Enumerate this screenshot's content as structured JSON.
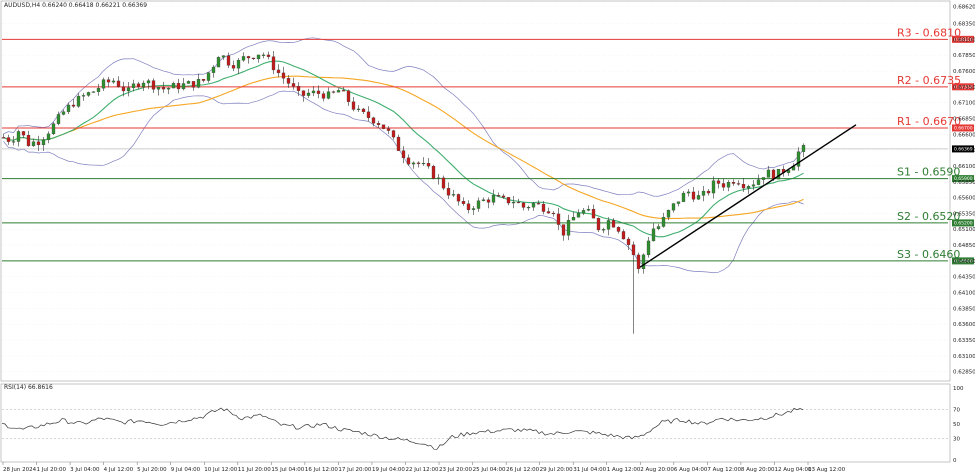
{
  "header": {
    "symbol_text": "AUDUSD,H4  0.66240 0.66418 0.66221 0.66369"
  },
  "current_price_text": "0.66369",
  "colors": {
    "bull": "#2f8f2f",
    "bear": "#c21d1d",
    "support": "#2e7d32",
    "resistance": "#e53935",
    "band": "#7f7fbf",
    "ma_fast": "#3fae6e",
    "ma_slow": "#f5a623",
    "trend": "#000000",
    "rsi": "#333333",
    "grid": "#d9d9d9"
  },
  "chart_data": [
    {
      "type": "candlestick",
      "title": "",
      "ylim": [
        0.6275,
        0.6869
      ],
      "y_ticks": [
        0.6862,
        0.6835,
        0.681,
        0.6785,
        0.676,
        0.6735,
        0.671,
        0.6685,
        0.666,
        0.6635,
        0.661,
        0.6585,
        0.656,
        0.6535,
        0.651,
        0.6485,
        0.646,
        0.6435,
        0.641,
        0.6385,
        0.636,
        0.6335,
        0.631,
        0.6285
      ],
      "x_ticks": [
        "28 Jun 2024",
        "1 Jul 20:00",
        "3 Jul 04:00",
        "4 Jul 12:00",
        "5 Jul 20:00",
        "9 Jul 04:00",
        "10 Jul 12:00",
        "11 Jul 20:00",
        "15 Jul 04:00",
        "16 Jul 12:00",
        "17 Jul 20:00",
        "19 Jul 04:00",
        "22 Jul 12:00",
        "23 Jul 20:00",
        "25 Jul 04:00",
        "26 Jul 12:00",
        "29 Jul 20:00",
        "31 Jul 04:00",
        "1 Aug 12:00",
        "2 Aug 20:00",
        "6 Aug 04:00",
        "7 Aug 12:00",
        "8 Aug 20:00",
        "12 Aug 04:00",
        "13 Aug 12:00"
      ],
      "levels": [
        {
          "name": "R3",
          "value": 0.681,
          "label": "R3 - 0.6810",
          "tag": "0.68100",
          "kind": "resistance"
        },
        {
          "name": "R2",
          "value": 0.6735,
          "label": "R2 - 0.6735",
          "tag": "0.67350",
          "kind": "resistance"
        },
        {
          "name": "R1",
          "value": 0.667,
          "label": "R1 - 0.6670",
          "tag": "0.66700",
          "kind": "resistance"
        },
        {
          "name": "S1",
          "value": 0.659,
          "label": "S1 - 0.6590",
          "tag": "0.65900",
          "kind": "support"
        },
        {
          "name": "S2",
          "value": 0.652,
          "label": "S2 - 0.6520",
          "tag": "0.65200",
          "kind": "support"
        },
        {
          "name": "S3",
          "value": 0.646,
          "label": "S3 - 0.6460",
          "tag": "0.64600",
          "kind": "support"
        }
      ],
      "current_price": 0.66369,
      "trendline": {
        "from": [
          "2 Aug 20:00",
          0.645
        ],
        "to": [
          "13 Aug 12:00 +",
          0.6675
        ]
      },
      "price_path": [
        [
          0,
          0.6655
        ],
        [
          8,
          0.665
        ],
        [
          16,
          0.6668
        ],
        [
          24,
          0.6645
        ],
        [
          36,
          0.665
        ],
        [
          48,
          0.667
        ],
        [
          60,
          0.6695
        ],
        [
          70,
          0.671
        ],
        [
          80,
          0.672
        ],
        [
          90,
          0.6728
        ],
        [
          100,
          0.674
        ],
        [
          110,
          0.6745
        ],
        [
          118,
          0.6735
        ],
        [
          124,
          0.6725
        ],
        [
          132,
          0.674
        ],
        [
          140,
          0.6745
        ],
        [
          150,
          0.6738
        ],
        [
          160,
          0.6732
        ],
        [
          170,
          0.6735
        ],
        [
          180,
          0.6738
        ],
        [
          190,
          0.674
        ],
        [
          200,
          0.6745
        ],
        [
          210,
          0.677
        ],
        [
          216,
          0.679
        ],
        [
          224,
          0.6775
        ],
        [
          232,
          0.677
        ],
        [
          240,
          0.678
        ],
        [
          250,
          0.6785
        ],
        [
          258,
          0.679
        ],
        [
          266,
          0.6775
        ],
        [
          276,
          0.6755
        ],
        [
          286,
          0.674
        ],
        [
          296,
          0.672
        ],
        [
          306,
          0.6725
        ],
        [
          316,
          0.6725
        ],
        [
          326,
          0.672
        ],
        [
          336,
          0.673
        ],
        [
          344,
          0.6715
        ],
        [
          354,
          0.6695
        ],
        [
          364,
          0.6688
        ],
        [
          374,
          0.668
        ],
        [
          384,
          0.6665
        ],
        [
          394,
          0.664
        ],
        [
          404,
          0.662
        ],
        [
          414,
          0.6615
        ],
        [
          424,
          0.6605
        ],
        [
          434,
          0.659
        ],
        [
          444,
          0.657
        ],
        [
          454,
          0.6555
        ],
        [
          462,
          0.654
        ],
        [
          470,
          0.6548
        ],
        [
          480,
          0.6555
        ],
        [
          490,
          0.656
        ],
        [
          500,
          0.6555
        ],
        [
          510,
          0.6555
        ],
        [
          520,
          0.6545
        ],
        [
          530,
          0.655
        ],
        [
          540,
          0.6545
        ],
        [
          550,
          0.654
        ],
        [
          558,
          0.65
        ],
        [
          566,
          0.652
        ],
        [
          576,
          0.654
        ],
        [
          586,
          0.6535
        ],
        [
          596,
          0.651
        ],
        [
          606,
          0.6525
        ],
        [
          616,
          0.651
        ],
        [
          624,
          0.649
        ],
        [
          630,
          0.647
        ],
        [
          634,
          0.644
        ],
        [
          640,
          0.647
        ],
        [
          648,
          0.651
        ],
        [
          656,
          0.6515
        ],
        [
          664,
          0.6535
        ],
        [
          674,
          0.6555
        ],
        [
          684,
          0.657
        ],
        [
          694,
          0.656
        ],
        [
          702,
          0.6565
        ],
        [
          712,
          0.6585
        ],
        [
          722,
          0.658
        ],
        [
          732,
          0.659
        ],
        [
          742,
          0.658
        ],
        [
          752,
          0.6585
        ],
        [
          762,
          0.66
        ],
        [
          772,
          0.6595
        ],
        [
          782,
          0.6605
        ],
        [
          790,
          0.6615
        ],
        [
          796,
          0.6635
        ],
        [
          802,
          0.6637
        ]
      ],
      "rsi": {
        "label": "RSI(14) 66.8616",
        "ylim": [
          0,
          100
        ],
        "y_ticks": [
          100,
          70,
          50,
          30,
          0
        ],
        "levels": [
          70,
          30
        ],
        "path": [
          [
            0,
            50
          ],
          [
            20,
            42
          ],
          [
            40,
            48
          ],
          [
            60,
            55
          ],
          [
            80,
            50
          ],
          [
            100,
            58
          ],
          [
            120,
            52
          ],
          [
            140,
            55
          ],
          [
            160,
            50
          ],
          [
            180,
            55
          ],
          [
            200,
            60
          ],
          [
            220,
            72
          ],
          [
            240,
            58
          ],
          [
            260,
            62
          ],
          [
            280,
            48
          ],
          [
            300,
            45
          ],
          [
            320,
            50
          ],
          [
            340,
            42
          ],
          [
            360,
            38
          ],
          [
            380,
            32
          ],
          [
            400,
            28
          ],
          [
            420,
            24
          ],
          [
            436,
            16
          ],
          [
            450,
            32
          ],
          [
            470,
            38
          ],
          [
            490,
            40
          ],
          [
            510,
            42
          ],
          [
            530,
            40
          ],
          [
            550,
            36
          ],
          [
            570,
            40
          ],
          [
            590,
            38
          ],
          [
            610,
            34
          ],
          [
            630,
            30
          ],
          [
            640,
            34
          ],
          [
            660,
            52
          ],
          [
            680,
            56
          ],
          [
            700,
            50
          ],
          [
            720,
            58
          ],
          [
            740,
            55
          ],
          [
            760,
            58
          ],
          [
            780,
            64
          ],
          [
            795,
            70
          ],
          [
            802,
            66.86
          ]
        ]
      }
    }
  ]
}
